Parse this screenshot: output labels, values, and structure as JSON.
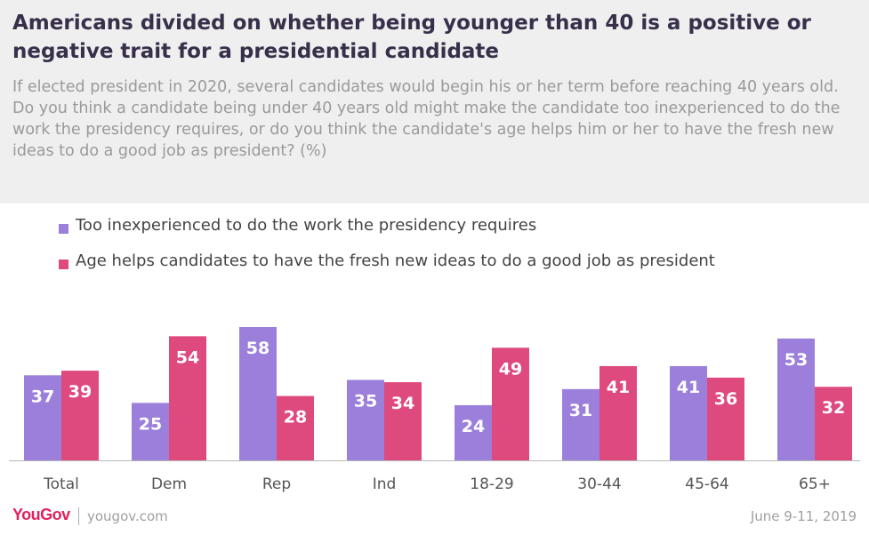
{
  "header": {
    "title": "Americans divided on whether being younger than 40 is a positive or negative trait for a presidential candidate",
    "subtitle": "If elected president in 2020, several candidates would begin his or her term before reaching 40 years old. Do you think a candidate being under 40 years old might make the candidate too inexperienced to do the work the presidency requires, or do you think the candidate's age helps him or her to have the fresh new ideas to do a good job as president? (%)"
  },
  "legend": [
    {
      "label": "Too inexperienced to do the work the presidency requires",
      "color": "#9b7fdb"
    },
    {
      "label": "Age helps candidates to have the fresh new ideas to do a good job as president",
      "color": "#de4a7e"
    }
  ],
  "chart_data": {
    "type": "bar",
    "categories": [
      "Total",
      "Dem",
      "Rep",
      "Ind",
      "18-29",
      "30-44",
      "45-64",
      "65+"
    ],
    "series": [
      {
        "name": "Too inexperienced to do the work the presidency requires",
        "values": [
          37,
          25,
          58,
          35,
          24,
          31,
          41,
          53
        ],
        "color": "#9b7fdb"
      },
      {
        "name": "Age helps candidates to have the fresh new ideas to do a good job as president",
        "values": [
          39,
          54,
          28,
          34,
          49,
          41,
          36,
          32
        ],
        "color": "#de4a7e"
      }
    ],
    "title": "",
    "xlabel": "",
    "ylabel": "",
    "ylim": [
      0,
      60
    ],
    "grid": false,
    "legend_position": "top-left"
  },
  "footer": {
    "logo": "YouGov",
    "site": "yougov.com",
    "date": "June 9-11, 2019"
  }
}
